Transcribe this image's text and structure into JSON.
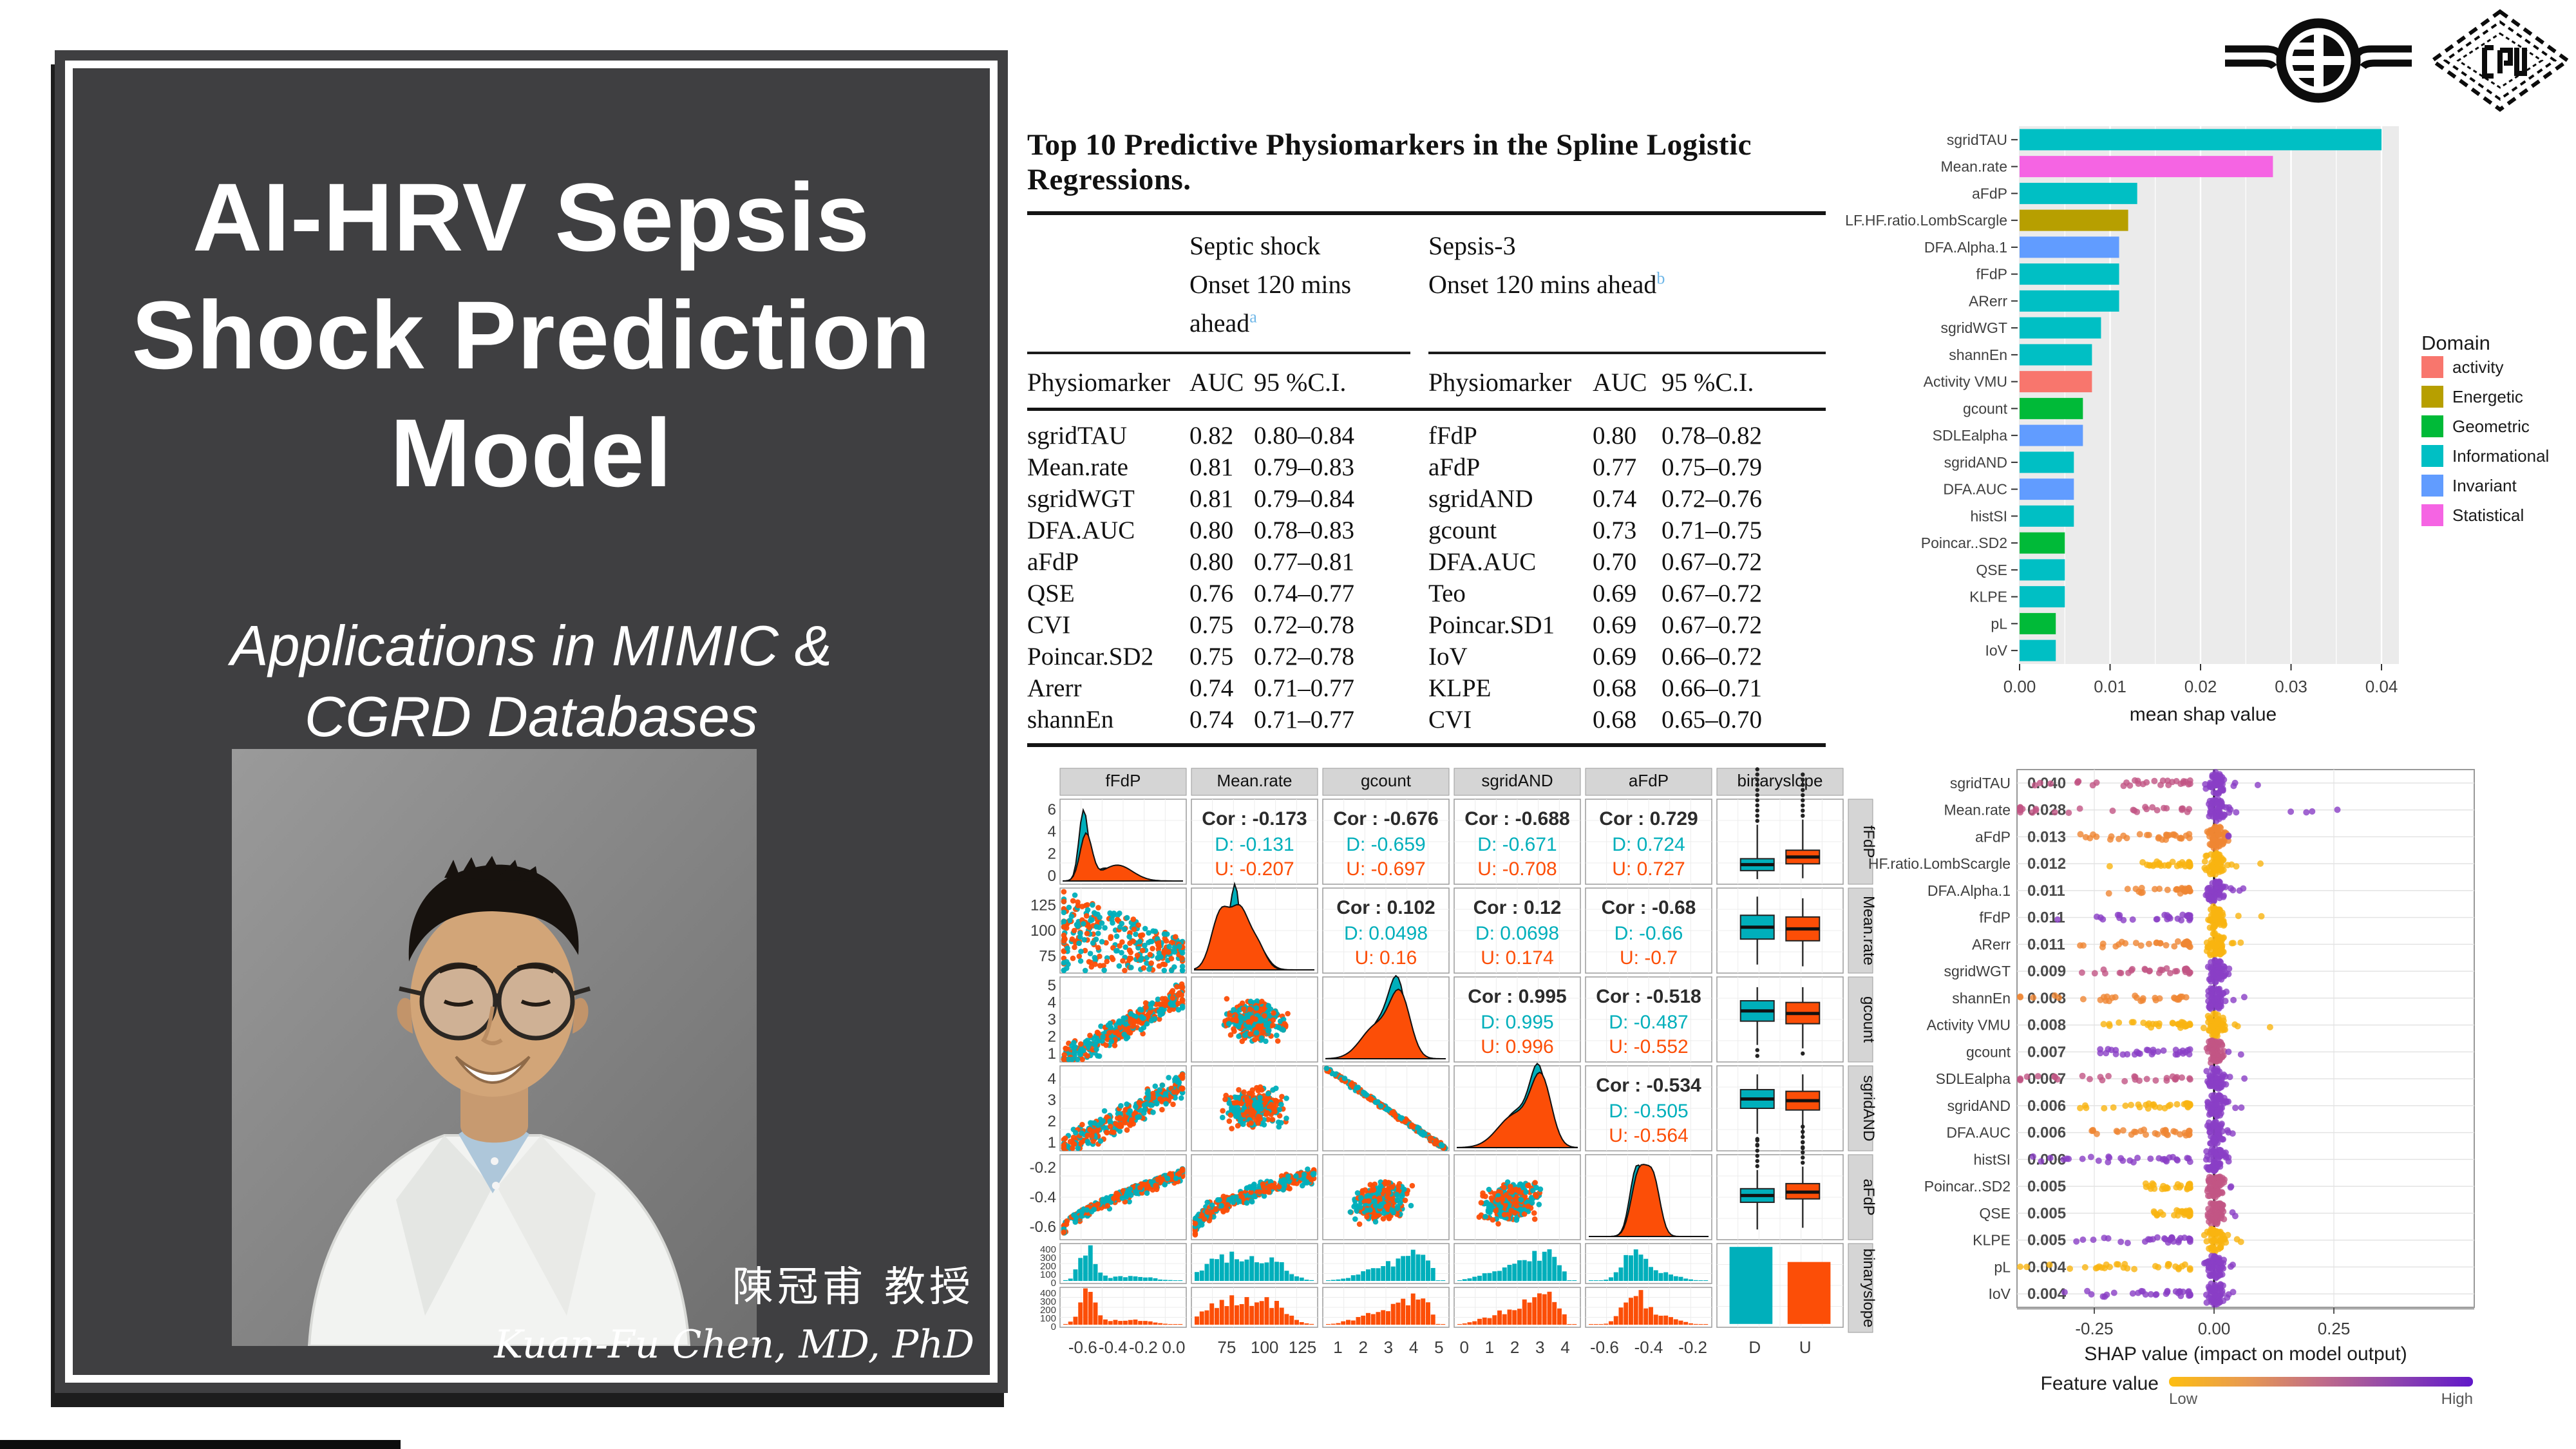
{
  "slide": {
    "title_lines": [
      "AI-HRV Sepsis",
      "Shock Prediction",
      "Model"
    ],
    "subtitle_lines": [
      "Applications in MIMIC &",
      "CGRD Databases"
    ],
    "author_cjk": "陳冠甫  教授",
    "author_en": "Kuan-Fu Chen, MD, PhD"
  },
  "logos": {
    "left": "hospital-cross-logo",
    "right": "cgu-diamond-logo"
  },
  "table": {
    "title": "Top 10 Predictive Physiomarkers in the Spline Logistic Regressions.",
    "groups": [
      {
        "name": "Septic shock",
        "subtitle": "Onset 120 mins ahead",
        "sup": "a"
      },
      {
        "name": "Sepsis-3",
        "subtitle": "Onset 120 mins ahead",
        "sup": "b"
      }
    ],
    "columns": [
      "Physiomarker",
      "AUC",
      "95 %C.I."
    ],
    "rows": [
      {
        "left": [
          "sgridTAU",
          "0.82",
          "0.80–0.84"
        ],
        "right": [
          "fFdP",
          "0.80",
          "0.78–0.82"
        ]
      },
      {
        "left": [
          "Mean.rate",
          "0.81",
          "0.79–0.83"
        ],
        "right": [
          "aFdP",
          "0.77",
          "0.75–0.79"
        ]
      },
      {
        "left": [
          "sgridWGT",
          "0.81",
          "0.79–0.84"
        ],
        "right": [
          "sgridAND",
          "0.74",
          "0.72–0.76"
        ]
      },
      {
        "left": [
          "DFA.AUC",
          "0.80",
          "0.78–0.83"
        ],
        "right": [
          "gcount",
          "0.73",
          "0.71–0.75"
        ]
      },
      {
        "left": [
          "aFdP",
          "0.80",
          "0.77–0.81"
        ],
        "right": [
          "DFA.AUC",
          "0.70",
          "0.67–0.72"
        ]
      },
      {
        "left": [
          "QSE",
          "0.76",
          "0.74–0.77"
        ],
        "right": [
          "Teo",
          "0.69",
          "0.67–0.72"
        ]
      },
      {
        "left": [
          "CVI",
          "0.75",
          "0.72–0.78"
        ],
        "right": [
          "Poincar.SD1",
          "0.69",
          "0.67–0.72"
        ]
      },
      {
        "left": [
          "Poincar.SD2",
          "0.75",
          "0.72–0.78"
        ],
        "right": [
          "IoV",
          "0.69",
          "0.66–0.72"
        ]
      },
      {
        "left": [
          "Arerr",
          "0.74",
          "0.71–0.77"
        ],
        "right": [
          "KLPE",
          "0.68",
          "0.66–0.71"
        ]
      },
      {
        "left": [
          "shannEn",
          "0.74",
          "0.71–0.77"
        ],
        "right": [
          "CVI",
          "0.68",
          "0.65–0.70"
        ]
      }
    ]
  },
  "colors": {
    "slide_panel": "#3F3F41",
    "table_sup": "#6FB7E8",
    "ggplot_panel": "#EBEBEB",
    "teal": "#00AFBB",
    "orange": "#FC4E07",
    "domain_colors": {
      "activity": "#F8766D",
      "Energetic": "#B79F00",
      "Geometric": "#00BA38",
      "Informational": "#00BFC4",
      "Invariant": "#619CFF",
      "Statistical": "#F564E3"
    },
    "shap_gradient": [
      "#FDBE11",
      "#E89A50",
      "#C06C88",
      "#8D44AF",
      "#6018C9"
    ]
  },
  "chart_data": [
    {
      "type": "bar",
      "orientation": "horizontal",
      "title": "",
      "xlabel": "mean shap value",
      "ylabel": "",
      "xlim": [
        0,
        0.04
      ],
      "xticks": [
        "0.00",
        "0.01",
        "0.02",
        "0.03",
        "0.04"
      ],
      "categories": [
        "sgridTAU",
        "Mean.rate",
        "aFdP",
        "LF.HF.ratio.LombScargle",
        "DFA.Alpha.1",
        "fFdP",
        "ARerr",
        "sgridWGT",
        "shannEn",
        "Activity VMU",
        "gcount",
        "SDLEalpha",
        "sgridAND",
        "DFA.AUC",
        "histSI",
        "Poincar..SD2",
        "QSE",
        "KLPE",
        "pL",
        "IoV"
      ],
      "values": [
        0.04,
        0.028,
        0.013,
        0.012,
        0.011,
        0.011,
        0.011,
        0.009,
        0.008,
        0.008,
        0.007,
        0.007,
        0.006,
        0.006,
        0.006,
        0.005,
        0.005,
        0.005,
        0.004,
        0.004
      ],
      "domains": [
        "Informational",
        "Statistical",
        "Informational",
        "Energetic",
        "Invariant",
        "Informational",
        "Informational",
        "Informational",
        "Informational",
        "activity",
        "Geometric",
        "Invariant",
        "Informational",
        "Invariant",
        "Informational",
        "Geometric",
        "Informational",
        "Informational",
        "Geometric",
        "Informational"
      ],
      "legend": {
        "title": "Domain",
        "entries": [
          "activity",
          "Energetic",
          "Geometric",
          "Informational",
          "Invariant",
          "Statistical"
        ],
        "position": "right"
      },
      "grid": true
    },
    {
      "type": "scatter",
      "subtype": "scatterplot-matrix",
      "variables": [
        "fFdP",
        "Mean.rate",
        "gcount",
        "sgridAND",
        "aFdP",
        "binaryslope"
      ],
      "groups": [
        "D",
        "U"
      ],
      "correlations": [
        {
          "row": 0,
          "col": 1,
          "cor": "-0.173",
          "d": "-0.131",
          "u": "-0.207"
        },
        {
          "row": 0,
          "col": 2,
          "cor": "-0.676",
          "d": "-0.659",
          "u": "-0.697"
        },
        {
          "row": 0,
          "col": 3,
          "cor": "-0.688",
          "d": "-0.671",
          "u": "-0.708"
        },
        {
          "row": 0,
          "col": 4,
          "cor": "0.729",
          "d": "0.724",
          "u": "0.727"
        },
        {
          "row": 1,
          "col": 2,
          "cor": "0.102",
          "d": "0.0498",
          "u": "0.16"
        },
        {
          "row": 1,
          "col": 3,
          "cor": "0.12",
          "d": "0.0698",
          "u": "0.174"
        },
        {
          "row": 1,
          "col": 4,
          "cor": "-0.68",
          "d": "-0.66",
          "u": "-0.7"
        },
        {
          "row": 2,
          "col": 3,
          "cor": "0.995",
          "d": "0.995",
          "u": "0.996"
        },
        {
          "row": 2,
          "col": 4,
          "cor": "-0.518",
          "d": "-0.487",
          "u": "-0.552"
        },
        {
          "row": 3,
          "col": 4,
          "cor": "-0.534",
          "d": "-0.505",
          "u": "-0.564"
        }
      ],
      "x_ticks": [
        [
          "-0.6",
          "-0.4",
          "-0.2",
          "0.0"
        ],
        [
          "75",
          "100",
          "125"
        ],
        [
          "1",
          "2",
          "3",
          "4",
          "5"
        ],
        [
          "0",
          "1",
          "2",
          "3",
          "4"
        ],
        [
          "-0.6",
          "-0.4",
          "-0.2"
        ],
        [
          "D",
          "U"
        ]
      ],
      "y_ticks": [
        [
          "6",
          "4",
          "2",
          "0"
        ],
        [
          "125",
          "100",
          "75"
        ],
        [
          "5",
          "4",
          "3",
          "2",
          "1"
        ],
        [
          "4",
          "3",
          "2",
          "1"
        ],
        [
          "-0.2",
          "-0.4",
          "-0.6"
        ],
        [
          "400",
          "300",
          "200",
          "100",
          "0"
        ]
      ]
    },
    {
      "type": "scatter",
      "subtype": "shap-beeswarm",
      "xlabel": "SHAP value (impact on model output)",
      "xticks": [
        "-0.25",
        "0.00",
        "0.25"
      ],
      "xtick_values": [
        -0.25,
        0,
        0.25
      ],
      "features": [
        {
          "label": "sgridTAU",
          "mean_abs_shap": "0.040"
        },
        {
          "label": "Mean.rate",
          "mean_abs_shap": "0.028"
        },
        {
          "label": "aFdP",
          "mean_abs_shap": "0.013"
        },
        {
          "label": "LF.HF.ratio.LombScargle",
          "mean_abs_shap": "0.012"
        },
        {
          "label": "DFA.Alpha.1",
          "mean_abs_shap": "0.011"
        },
        {
          "label": "fFdP",
          "mean_abs_shap": "0.011"
        },
        {
          "label": "ARerr",
          "mean_abs_shap": "0.011"
        },
        {
          "label": "sgridWGT",
          "mean_abs_shap": "0.009"
        },
        {
          "label": "shannEn",
          "mean_abs_shap": "0.008"
        },
        {
          "label": "Activity VMU",
          "mean_abs_shap": "0.008"
        },
        {
          "label": "gcount",
          "mean_abs_shap": "0.007"
        },
        {
          "label": "SDLEalpha",
          "mean_abs_shap": "0.007"
        },
        {
          "label": "sgridAND",
          "mean_abs_shap": "0.006"
        },
        {
          "label": "DFA.AUC",
          "mean_abs_shap": "0.006"
        },
        {
          "label": "histSI",
          "mean_abs_shap": "0.006"
        },
        {
          "label": "Poincar..SD2",
          "mean_abs_shap": "0.005"
        },
        {
          "label": "QSE",
          "mean_abs_shap": "0.005"
        },
        {
          "label": "KLPE",
          "mean_abs_shap": "0.005"
        },
        {
          "label": "pL",
          "mean_abs_shap": "0.004"
        },
        {
          "label": "IoV",
          "mean_abs_shap": "0.004"
        }
      ],
      "legend": {
        "label": "Feature value",
        "low": "Low",
        "high": "High"
      }
    }
  ]
}
